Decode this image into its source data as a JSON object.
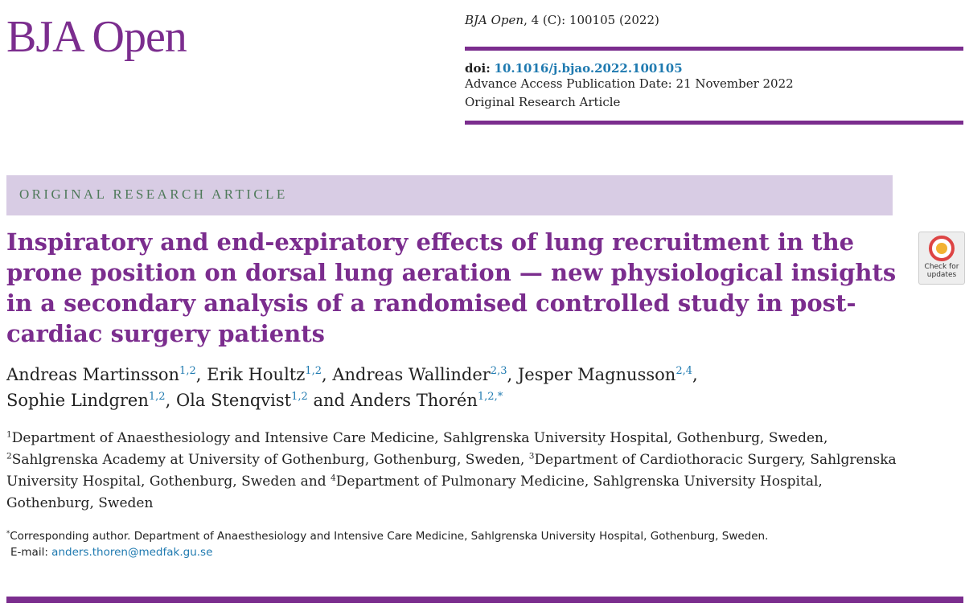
{
  "journal": {
    "logo": "BJA Open",
    "citation_journal": "BJA Open",
    "citation": ", 4 (C): 100105 (2022)",
    "doi_label": "doi:",
    "doi": "10.1016/j.bjao.2022.100105",
    "pub_date": "Advance Access Publication Date: 21 November 2022",
    "article_type": "Original Research Article"
  },
  "banner": "ORIGINAL RESEARCH ARTICLE",
  "badge": "Check for updates",
  "title": "Inspiratory and end-expiratory effects of lung recruitment in the prone position on dorsal lung aeration — new physiological insights in a secondary analysis of a randomised controlled study in post-cardiac surgery patients",
  "author_lines": [
    [
      {
        "name": "Andreas Martinsson",
        "sup": "1,2",
        "sep": ", "
      },
      {
        "name": "Erik Houltz",
        "sup": "1,2",
        "sep": ", "
      },
      {
        "name": "Andreas Wallinder",
        "sup": "2,3",
        "sep": ", "
      },
      {
        "name": "Jesper Magnusson",
        "sup": "2,4",
        "sep": ","
      }
    ],
    [
      {
        "name": "Sophie Lindgren",
        "sup": "1,2",
        "sep": ", "
      },
      {
        "name": "Ola Stenqvist",
        "sup": "1,2",
        "sep": " and "
      },
      {
        "name": "Anders Thorén",
        "sup": "1,2,*"
      }
    ]
  ],
  "affiliations": [
    {
      "sup": "1",
      "text": "Department of Anaesthesiology and Intensive Care Medicine, Sahlgrenska University Hospital, Gothenburg, Sweden, "
    },
    {
      "sup": "2",
      "text": "Sahlgrenska Academy at University of Gothenburg, Gothenburg, Sweden, "
    },
    {
      "sup": "3",
      "text": "Department of Cardiothoracic Surgery, Sahlgrenska University Hospital, Gothenburg, Sweden and "
    },
    {
      "sup": "4",
      "text": "Department of Pulmonary Medicine, Sahlgrenska University Hospital, Gothenburg, Sweden"
    }
  ],
  "corresponding": {
    "mark": "*",
    "text": "Corresponding author. Department of Anaesthesiology and Intensive Care Medicine, Sahlgrenska University Hospital, Gothenburg, Sweden.",
    "email_label": "E-mail:",
    "email": "anders.thoren@medfak.gu.se"
  }
}
